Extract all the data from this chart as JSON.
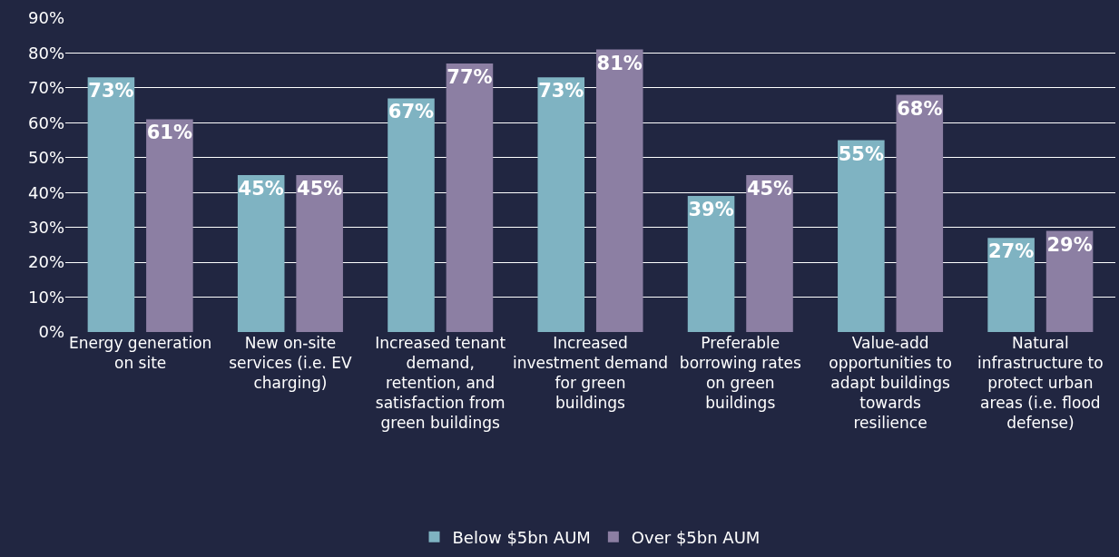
{
  "chart_data": {
    "type": "bar",
    "categories": [
      "Energy generation on site",
      "New on-site services (i.e. EV charging)",
      "Increased tenant demand, retention, and satisfaction from green buildings",
      "Increased investment demand for green buildings",
      "Preferable borrowing rates on green buildings",
      "Value-add opportunities to adapt buildings towards resilience",
      "Natural infrastructure to protect urban areas (i.e. flood defense)"
    ],
    "series": [
      {
        "name": "Below $5bn AUM",
        "color": "#7fb3c2",
        "values": [
          73,
          45,
          67,
          73,
          39,
          55,
          27
        ],
        "value_labels": [
          "73%",
          "45%",
          "67%",
          "73%",
          "39%",
          "55%",
          "27%"
        ]
      },
      {
        "name": "Over $5bn AUM",
        "color": "#8c7fa3",
        "values": [
          61,
          45,
          77,
          81,
          45,
          68,
          29
        ],
        "value_labels": [
          "61%",
          "45%",
          "77%",
          "81%",
          "45%",
          "68%",
          "29%"
        ]
      }
    ],
    "ylim": [
      0,
      90
    ],
    "yticks": [
      {
        "value": 0,
        "label": "0%"
      },
      {
        "value": 10,
        "label": "10%"
      },
      {
        "value": 20,
        "label": "20%"
      },
      {
        "value": 30,
        "label": "30%"
      },
      {
        "value": 40,
        "label": "40%"
      },
      {
        "value": 50,
        "label": "50%"
      },
      {
        "value": 60,
        "label": "60%"
      },
      {
        "value": 70,
        "label": "70%"
      },
      {
        "value": 80,
        "label": "80%"
      },
      {
        "value": 90,
        "label": "90%"
      }
    ],
    "grid": "y",
    "legend": "bottom"
  }
}
